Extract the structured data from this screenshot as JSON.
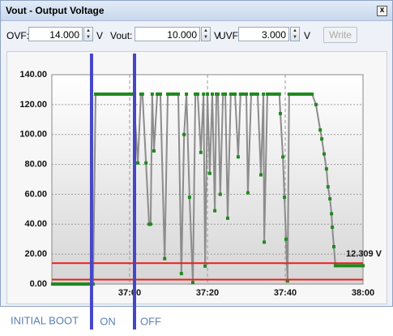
{
  "window": {
    "title": "Vout - Output Voltage"
  },
  "toolbar": {
    "ovf_label": "OVF:",
    "ovf_value": "14.000",
    "vout_label": "Vout:",
    "vout_value": "10.000",
    "uvf_label": "UVF:",
    "uvf_value": "3.000",
    "unit": "V",
    "button": "Write"
  },
  "chart_data": {
    "type": "line",
    "x": [
      2200.2,
      2210.6,
      2211.25,
      2221.0,
      2222.1,
      2222.9,
      2223.3,
      2224.2,
      2225.0,
      2225.4,
      2225.8,
      2226.25,
      2227.1,
      2227.9,
      2229.0,
      2229.8,
      2232.5,
      2233.3,
      2234.0,
      2234.6,
      2235.4,
      2236.25,
      2236.9,
      2237.5,
      2238.3,
      2239.0,
      2239.4,
      2240.0,
      2240.6,
      2241.25,
      2241.9,
      2242.3,
      2242.7,
      2243.3,
      2244.0,
      2244.6,
      2245.2,
      2246.0,
      2247.1,
      2247.9,
      2248.5,
      2250.0,
      2250.4,
      2251.25,
      2252.9,
      2253.75,
      2254.4,
      2254.6,
      2255.4,
      2258.5,
      2258.75,
      2259.4,
      2259.8,
      2260.2,
      2260.6,
      2261.0,
      2266.9,
      2267.9,
      2269.0,
      2269.4,
      2270.0,
      2270.6,
      2271.0,
      2271.5,
      2271.9,
      2272.1,
      2272.5,
      2272.9,
      2280.0
    ],
    "values": [
      0,
      0,
      127,
      127,
      81,
      127,
      127,
      81,
      40,
      40,
      127,
      89,
      127,
      127,
      17,
      127,
      127,
      7,
      100,
      127,
      58,
      1,
      127,
      127,
      88,
      127,
      12,
      127,
      74,
      127,
      49,
      127,
      127,
      60,
      127,
      127,
      44,
      127,
      127,
      85,
      127,
      127,
      61,
      127,
      127,
      73,
      127,
      28,
      127,
      127,
      114,
      85,
      58,
      30,
      2,
      127,
      127,
      120,
      103,
      97,
      87,
      77,
      65,
      57,
      47,
      38,
      25,
      12.3,
      12.3
    ],
    "color": "#1f8a1f",
    "line_color": "#8c8c8c",
    "xlim": [
      2200,
      2280
    ],
    "xticks": [
      {
        "value": 2220,
        "label": "37:00"
      },
      {
        "value": 2240,
        "label": "37:20"
      },
      {
        "value": 2260,
        "label": "37:40"
      },
      {
        "value": 2280,
        "label": "38:00"
      }
    ],
    "ylim": [
      0,
      140
    ],
    "yticks": [
      {
        "value": 0,
        "label": "0.00"
      },
      {
        "value": 20,
        "label": "20.00"
      },
      {
        "value": 40,
        "label": "40.00"
      },
      {
        "value": 60,
        "label": "60.00"
      },
      {
        "value": 80,
        "label": "80.00"
      },
      {
        "value": 100,
        "label": "100.00"
      },
      {
        "value": 120,
        "label": "120.00"
      },
      {
        "value": 140,
        "label": "140.00"
      }
    ],
    "grid": true,
    "limits": [
      {
        "value": 14,
        "color": "#e8201c"
      },
      {
        "value": 3,
        "color": "#e8201c"
      }
    ],
    "readout": "12.309 V",
    "boot_label": "INITIAL BOOT",
    "markers": [
      {
        "label": "ON",
        "x": 2210.2,
        "color": "#4646c8"
      },
      {
        "label": "OFF",
        "x": 2221.25,
        "color": "#4646c8"
      }
    ]
  }
}
